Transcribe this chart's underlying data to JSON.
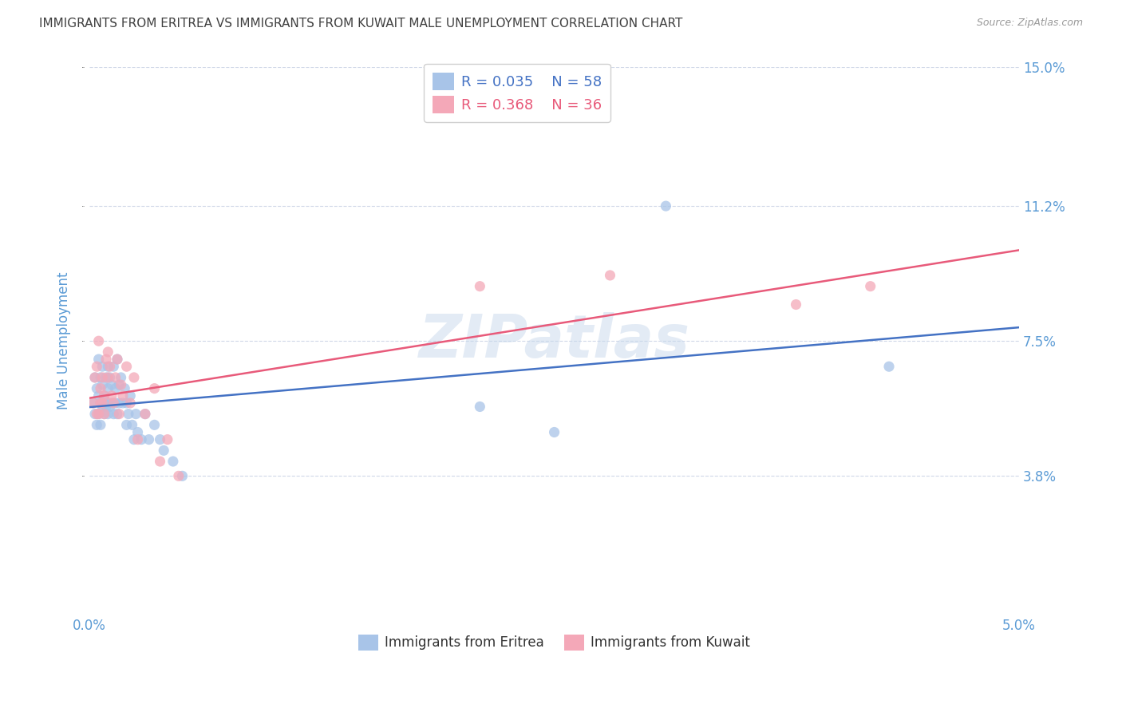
{
  "title": "IMMIGRANTS FROM ERITREA VS IMMIGRANTS FROM KUWAIT MALE UNEMPLOYMENT CORRELATION CHART",
  "source": "Source: ZipAtlas.com",
  "xlabel_eritrea": "Immigrants from Eritrea",
  "xlabel_kuwait": "Immigrants from Kuwait",
  "ylabel": "Male Unemployment",
  "watermark": "ZIPatlas",
  "xlim": [
    0.0,
    0.05
  ],
  "ylim": [
    0.0,
    0.15
  ],
  "yticks": [
    0.038,
    0.075,
    0.112,
    0.15
  ],
  "ytick_labels": [
    "3.8%",
    "7.5%",
    "11.2%",
    "15.0%"
  ],
  "xticks": [
    0.0,
    0.01,
    0.02,
    0.03,
    0.04,
    0.05
  ],
  "xtick_labels": [
    "0.0%",
    "",
    "",
    "",
    "",
    "5.0%"
  ],
  "legend_r_eritrea": "R = 0.035",
  "legend_n_eritrea": "N = 58",
  "legend_r_kuwait": "R = 0.368",
  "legend_n_kuwait": "N = 36",
  "color_eritrea": "#a8c4e8",
  "color_kuwait": "#f4a8b8",
  "line_color_eritrea": "#4472c4",
  "line_color_kuwait": "#e85a7a",
  "title_color": "#404040",
  "axis_tick_color": "#5b9bd5",
  "grid_color": "#d0d8e8",
  "background_color": "#ffffff",
  "title_fontsize": 11,
  "marker_size": 90,
  "eritrea_x": [
    0.0002,
    0.0003,
    0.0003,
    0.0004,
    0.0004,
    0.0005,
    0.0005,
    0.0005,
    0.0006,
    0.0006,
    0.0006,
    0.0007,
    0.0007,
    0.0007,
    0.0008,
    0.0008,
    0.0008,
    0.0009,
    0.0009,
    0.001,
    0.001,
    0.001,
    0.001,
    0.0011,
    0.0011,
    0.0012,
    0.0012,
    0.0013,
    0.0013,
    0.0014,
    0.0014,
    0.0015,
    0.0015,
    0.0016,
    0.0016,
    0.0017,
    0.0018,
    0.0019,
    0.002,
    0.002,
    0.0021,
    0.0022,
    0.0023,
    0.0024,
    0.0025,
    0.0026,
    0.0028,
    0.003,
    0.0032,
    0.0035,
    0.0038,
    0.004,
    0.0045,
    0.005,
    0.021,
    0.025,
    0.031,
    0.043
  ],
  "eritrea_y": [
    0.058,
    0.065,
    0.055,
    0.062,
    0.052,
    0.07,
    0.06,
    0.055,
    0.058,
    0.065,
    0.052,
    0.068,
    0.057,
    0.063,
    0.06,
    0.055,
    0.058,
    0.065,
    0.057,
    0.068,
    0.062,
    0.058,
    0.055,
    0.065,
    0.057,
    0.063,
    0.058,
    0.068,
    0.055,
    0.062,
    0.058,
    0.07,
    0.055,
    0.063,
    0.058,
    0.065,
    0.058,
    0.062,
    0.052,
    0.058,
    0.055,
    0.06,
    0.052,
    0.048,
    0.055,
    0.05,
    0.048,
    0.055,
    0.048,
    0.052,
    0.048,
    0.045,
    0.042,
    0.038,
    0.057,
    0.05,
    0.112,
    0.068
  ],
  "kuwait_x": [
    0.0002,
    0.0003,
    0.0004,
    0.0004,
    0.0005,
    0.0005,
    0.0006,
    0.0006,
    0.0007,
    0.0007,
    0.0008,
    0.0008,
    0.0009,
    0.001,
    0.001,
    0.0011,
    0.0012,
    0.0013,
    0.0014,
    0.0015,
    0.0016,
    0.0017,
    0.0018,
    0.002,
    0.0022,
    0.0024,
    0.0026,
    0.003,
    0.0035,
    0.0038,
    0.0042,
    0.0048,
    0.021,
    0.028,
    0.038,
    0.042
  ],
  "kuwait_y": [
    0.058,
    0.065,
    0.055,
    0.068,
    0.055,
    0.075,
    0.062,
    0.058,
    0.065,
    0.058,
    0.06,
    0.055,
    0.07,
    0.065,
    0.072,
    0.068,
    0.06,
    0.058,
    0.065,
    0.07,
    0.055,
    0.063,
    0.06,
    0.068,
    0.058,
    0.065,
    0.048,
    0.055,
    0.062,
    0.042,
    0.048,
    0.038,
    0.09,
    0.093,
    0.085,
    0.09
  ]
}
